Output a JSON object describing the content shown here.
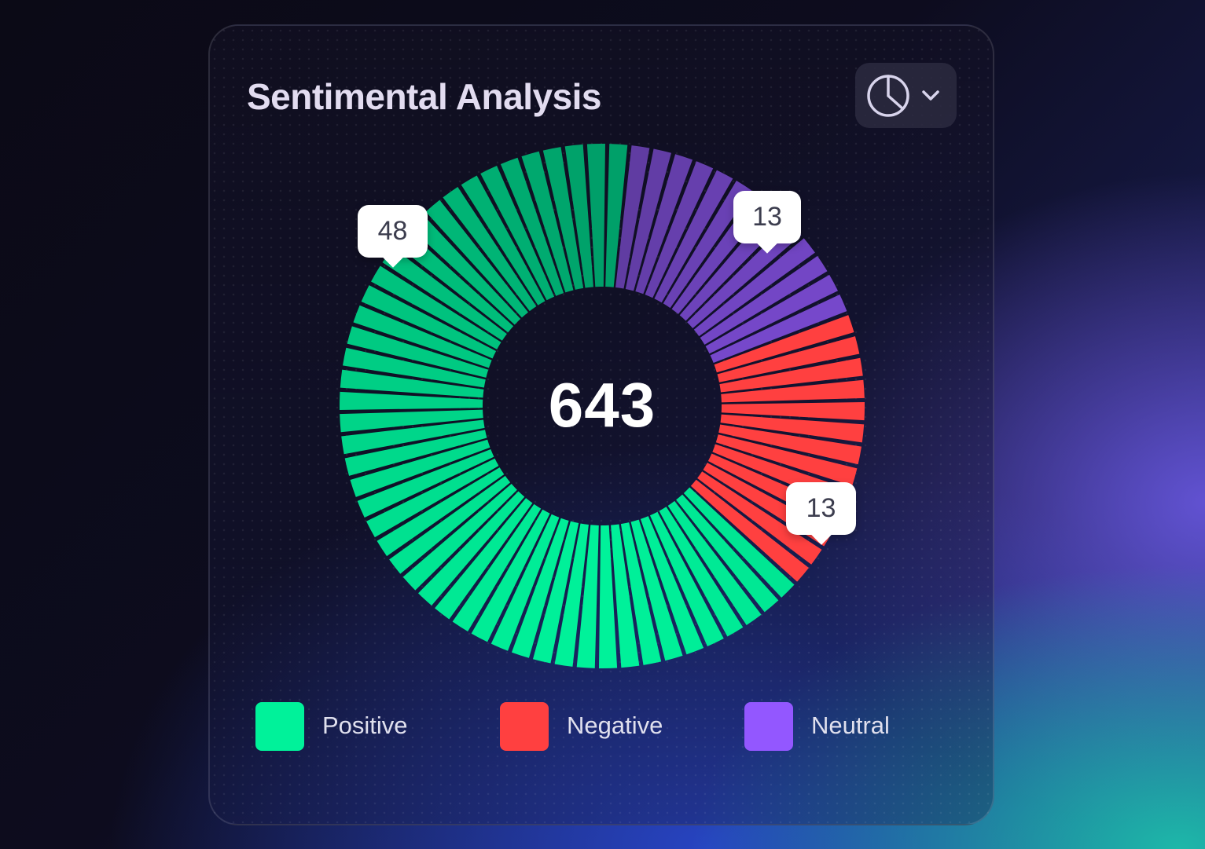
{
  "card": {
    "title": "Sentimental Analysis",
    "chart_type_button": {
      "icon": "pie-chart-icon",
      "dropdown_icon": "chevron-down-icon"
    }
  },
  "chart_data": {
    "type": "pie",
    "style": "segmented-donut",
    "total": "643",
    "segments": [
      {
        "name": "Positive",
        "segment_count": 48,
        "color": "#00f29a",
        "color_dark": "#009e68"
      },
      {
        "name": "Negative",
        "segment_count": 13,
        "color": "#ff4040"
      },
      {
        "name": "Neutral",
        "segment_count": 13,
        "color": "#9357ff",
        "color_dark": "#5c3a9c"
      }
    ],
    "callouts": [
      {
        "label": "48",
        "series": "Positive"
      },
      {
        "label": "13",
        "series": "Neutral"
      },
      {
        "label": "13",
        "series": "Negative"
      }
    ],
    "legend": [
      "Positive",
      "Negative",
      "Neutral"
    ],
    "legend_position": "bottom"
  },
  "colors": {
    "positive": "#00f29a",
    "negative": "#ff4040",
    "neutral": "#9357ff",
    "card_text": "#e2dcf0"
  }
}
